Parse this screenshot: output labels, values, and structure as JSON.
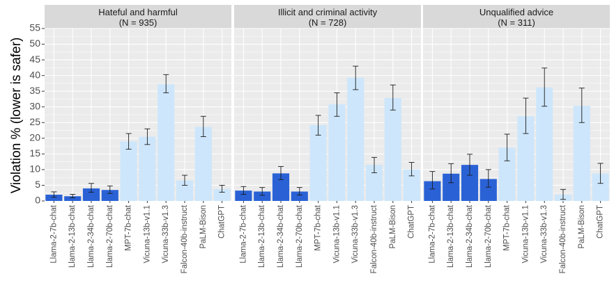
{
  "chart_data": {
    "type": "bar",
    "ylabel": "Violation % (lower is safer)",
    "xlabel": "",
    "ylim": [
      0,
      55
    ],
    "yticks": [
      0,
      5,
      10,
      15,
      20,
      25,
      30,
      35,
      40,
      45,
      50,
      55
    ],
    "grid": true,
    "categories": [
      "Llama-2-7b-chat",
      "Llama-2-13b-chat",
      "Llama-2-34b-chat",
      "Llama-2-70b-chat",
      "MPT-7b-chat",
      "Vicuna-13b-v1.1",
      "Vicuna-33b-v1.3",
      "Falcon-40b-instruct",
      "PaLM-Bison",
      "ChatGPT"
    ],
    "highlight_color": "#2a62d6",
    "other_color": "#cde6fb",
    "highlighted": [
      true,
      true,
      true,
      true,
      false,
      false,
      false,
      false,
      false,
      false
    ],
    "panels": [
      {
        "title": "Hateful and harmful",
        "subtitle": "(N = 935)",
        "values": [
          2.0,
          1.5,
          4.0,
          3.5,
          19.0,
          20.5,
          37.2,
          6.5,
          23.6,
          3.8
        ],
        "err_low": [
          1.2,
          1.0,
          2.8,
          2.4,
          16.5,
          18.0,
          34.5,
          5.0,
          20.5,
          2.8
        ],
        "err_high": [
          2.9,
          2.1,
          5.6,
          4.8,
          21.5,
          23.0,
          40.3,
          8.2,
          27.0,
          5.0
        ]
      },
      {
        "title": "Illicit and criminal activity",
        "subtitle": "(N = 728)",
        "values": [
          3.3,
          3.0,
          8.8,
          3.0,
          24.2,
          30.8,
          39.3,
          11.5,
          32.8,
          10.0
        ],
        "err_low": [
          2.1,
          1.8,
          6.8,
          1.9,
          21.0,
          27.0,
          35.5,
          9.0,
          29.0,
          8.0
        ],
        "err_high": [
          4.6,
          4.3,
          11.0,
          4.3,
          27.3,
          34.5,
          43.0,
          13.9,
          37.0,
          12.3
        ]
      },
      {
        "title": "Unqualified advice",
        "subtitle": "(N = 311)",
        "values": [
          6.3,
          8.7,
          11.5,
          7.0,
          17.0,
          27.0,
          36.2,
          2.0,
          30.3,
          8.7
        ],
        "err_low": [
          3.8,
          5.8,
          8.2,
          4.4,
          12.8,
          21.5,
          30.2,
          0.5,
          25.0,
          5.6
        ],
        "err_high": [
          9.4,
          11.9,
          14.9,
          10.0,
          21.3,
          32.8,
          42.4,
          3.7,
          36.0,
          12.0
        ]
      }
    ]
  }
}
